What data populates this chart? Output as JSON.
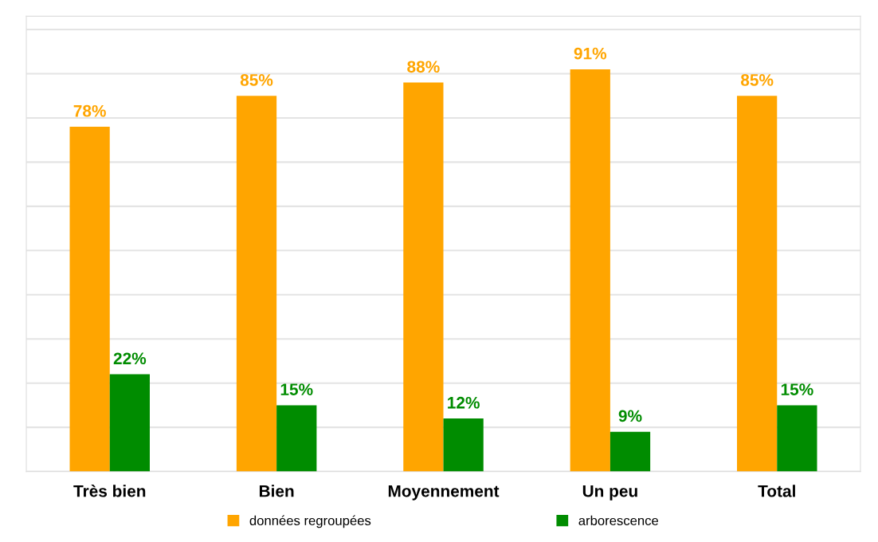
{
  "chart_data": {
    "type": "bar",
    "categories": [
      "Très bien",
      "Bien",
      "Moyennement",
      "Un peu",
      "Total"
    ],
    "series": [
      {
        "name": "données regroupées",
        "color": "#ffa500",
        "values": [
          78,
          85,
          88,
          91,
          85
        ],
        "value_labels": [
          "78%",
          "85%",
          "88%",
          "91%",
          "85%"
        ]
      },
      {
        "name": "arborescence",
        "color": "#008c00",
        "values": [
          22,
          15,
          12,
          9,
          15
        ],
        "value_labels": [
          "22%",
          "15%",
          "12%",
          "9%",
          "15%"
        ]
      }
    ],
    "ylim": [
      0,
      103
    ],
    "yticks": [
      {
        "value": 0,
        "label": null
      },
      {
        "value": 10,
        "label": null
      },
      {
        "value": 20,
        "label": null
      },
      {
        "value": 30,
        "label": null
      },
      {
        "value": 40,
        "label": null
      },
      {
        "value": 50,
        "label": null
      },
      {
        "value": 60,
        "label": null
      },
      {
        "value": 70,
        "label": null
      },
      {
        "value": 80,
        "label": null
      },
      {
        "value": 90,
        "label": null
      },
      {
        "value": 100,
        "label": null
      }
    ],
    "tick_labels": "x",
    "grid": "y",
    "legend": "bottom"
  }
}
